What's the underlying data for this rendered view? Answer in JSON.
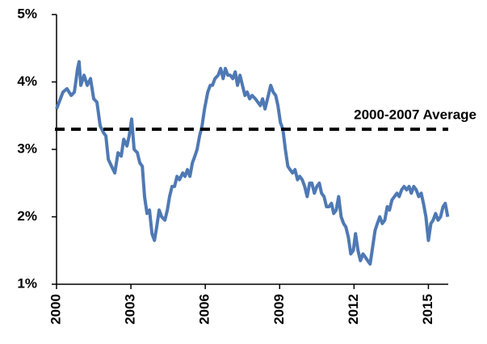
{
  "chart_data": {
    "type": "line",
    "x": [
      2000.0,
      2000.26,
      2000.42,
      2000.59,
      2000.72,
      2000.85,
      2000.91,
      2000.98,
      2001.11,
      2001.24,
      2001.37,
      2001.5,
      2001.63,
      2001.76,
      2001.89,
      2001.99,
      2002.09,
      2002.22,
      2002.35,
      2002.48,
      2002.61,
      2002.71,
      2002.84,
      2002.93,
      2003.03,
      2003.13,
      2003.26,
      2003.36,
      2003.46,
      2003.55,
      2003.65,
      2003.75,
      2003.85,
      2003.95,
      2004.04,
      2004.14,
      2004.24,
      2004.37,
      2004.47,
      2004.56,
      2004.66,
      2004.76,
      2004.86,
      2004.96,
      2005.09,
      2005.18,
      2005.28,
      2005.38,
      2005.48,
      2005.58,
      2005.67,
      2005.77,
      2005.87,
      2005.97,
      2006.1,
      2006.2,
      2006.29,
      2006.39,
      2006.52,
      2006.62,
      2006.72,
      2006.81,
      2006.91,
      2007.01,
      2007.11,
      2007.21,
      2007.3,
      2007.4,
      2007.5,
      2007.6,
      2007.69,
      2007.79,
      2007.89,
      2008.02,
      2008.12,
      2008.22,
      2008.31,
      2008.41,
      2008.51,
      2008.64,
      2008.74,
      2008.84,
      2008.93,
      2009.03,
      2009.13,
      2009.23,
      2009.33,
      2009.42,
      2009.52,
      2009.62,
      2009.72,
      2009.81,
      2009.91,
      2010.01,
      2010.11,
      2010.21,
      2010.3,
      2010.4,
      2010.5,
      2010.6,
      2010.69,
      2010.79,
      2010.89,
      2010.99,
      2011.09,
      2011.18,
      2011.28,
      2011.38,
      2011.48,
      2011.58,
      2011.67,
      2011.77,
      2011.87,
      2011.97,
      2012.06,
      2012.16,
      2012.26,
      2012.36,
      2012.46,
      2012.55,
      2012.65,
      2012.75,
      2012.85,
      2012.94,
      2013.04,
      2013.14,
      2013.24,
      2013.34,
      2013.43,
      2013.53,
      2013.63,
      2013.73,
      2013.82,
      2013.92,
      2014.02,
      2014.12,
      2014.22,
      2014.31,
      2014.41,
      2014.51,
      2014.61,
      2014.71,
      2014.8,
      2014.9,
      2015.0,
      2015.1,
      2015.19,
      2015.29,
      2015.39,
      2015.49,
      2015.59,
      2015.68,
      2015.78
    ],
    "series": [
      {
        "color": "#4f79b4",
        "values": [
          3.6,
          3.85,
          3.9,
          3.8,
          3.85,
          4.2,
          4.3,
          3.95,
          4.1,
          3.95,
          4.05,
          3.75,
          3.7,
          3.35,
          3.25,
          3.2,
          2.85,
          2.75,
          2.65,
          2.95,
          2.9,
          3.15,
          3.05,
          3.2,
          3.45,
          3.0,
          2.95,
          2.8,
          2.75,
          2.3,
          2.05,
          2.1,
          1.75,
          1.65,
          1.85,
          2.1,
          2.0,
          1.95,
          2.1,
          2.3,
          2.45,
          2.45,
          2.6,
          2.55,
          2.65,
          2.6,
          2.7,
          2.6,
          2.8,
          2.9,
          3.0,
          3.2,
          3.35,
          3.6,
          3.85,
          3.95,
          3.95,
          4.05,
          4.1,
          4.2,
          4.05,
          4.2,
          4.1,
          4.1,
          4.05,
          4.15,
          3.95,
          4.1,
          3.95,
          3.8,
          3.85,
          3.75,
          3.8,
          3.75,
          3.7,
          3.65,
          3.75,
          3.6,
          3.75,
          3.95,
          3.85,
          3.8,
          3.65,
          3.4,
          3.3,
          3.0,
          2.75,
          2.7,
          2.65,
          2.7,
          2.55,
          2.6,
          2.55,
          2.45,
          2.3,
          2.5,
          2.5,
          2.35,
          2.45,
          2.5,
          2.35,
          2.3,
          2.15,
          2.15,
          2.2,
          2.05,
          2.1,
          2.3,
          2.0,
          1.9,
          1.85,
          1.7,
          1.45,
          1.5,
          1.75,
          1.5,
          1.35,
          1.45,
          1.4,
          1.35,
          1.3,
          1.55,
          1.8,
          1.9,
          2.0,
          1.9,
          1.95,
          2.15,
          2.1,
          2.25,
          2.3,
          2.35,
          2.3,
          2.4,
          2.45,
          2.4,
          2.45,
          2.35,
          2.45,
          2.4,
          2.3,
          2.35,
          2.2,
          2.0,
          1.65,
          1.9,
          1.95,
          2.05,
          1.95,
          2.0,
          2.15,
          2.2,
          2.0
        ]
      }
    ],
    "reference_line": {
      "label": "2000-2007 Average",
      "value": 3.3
    },
    "xlim": [
      2000,
      2015.8
    ],
    "xticks": [
      2000,
      2003,
      2006,
      2009,
      2012,
      2015
    ],
    "ylim": [
      1,
      5
    ],
    "yticks": [
      {
        "value": 1,
        "label": "1%"
      },
      {
        "value": 2,
        "label": "2%"
      },
      {
        "value": 3,
        "label": "3%"
      },
      {
        "value": 4,
        "label": "4%"
      },
      {
        "value": 5,
        "label": "5%"
      }
    ]
  }
}
